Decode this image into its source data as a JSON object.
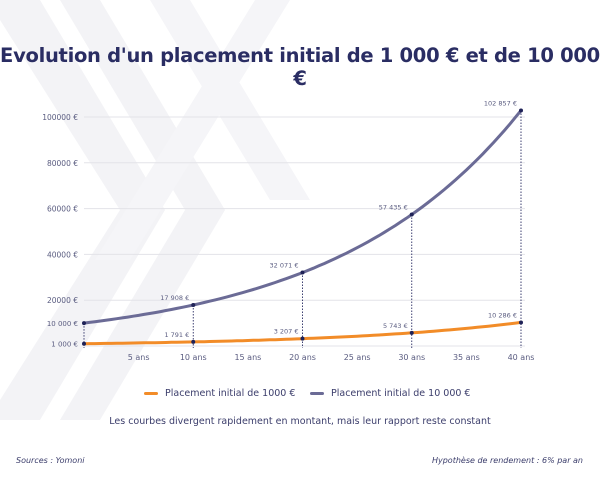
{
  "title": "Evolution d'un placement initial de 1 000 € et de 10 000 €",
  "chart_data": {
    "type": "line",
    "x": [
      0,
      10,
      20,
      30,
      40
    ],
    "xticks": [
      5,
      10,
      15,
      20,
      25,
      30,
      35,
      40
    ],
    "xtick_labels": [
      "5 ans",
      "10 ans",
      "15 ans",
      "20 ans",
      "25 ans",
      "30 ans",
      "35 ans",
      "40 ans"
    ],
    "xlim": [
      0,
      40
    ],
    "ylim": [
      0,
      100000
    ],
    "yticks": [
      1000,
      10000,
      20000,
      40000,
      60000,
      80000,
      100000
    ],
    "ytick_labels": [
      "1 000 €",
      "10 000 €",
      "20000 €",
      "40000 €",
      "60000 €",
      "80000 €",
      "100000 €"
    ],
    "grid": true,
    "legend_placement": "bottom",
    "series": [
      {
        "name": "Placement initial de 1000 €",
        "color": "#f28c28",
        "values": [
          1000,
          1791,
          3207,
          5743,
          10286
        ],
        "labels": [
          "",
          "1 791 €",
          "3 207 €",
          "5 743 €",
          "10 286 €"
        ]
      },
      {
        "name": "Placement initial de 10 000 €",
        "color": "#6b6b96",
        "values": [
          10000,
          17908,
          32071,
          57435,
          102857
        ],
        "labels": [
          "",
          "17 908 €",
          "32 071 €",
          "57 435 €",
          "102 857 €"
        ]
      }
    ],
    "marker_color": "#1f2257"
  },
  "caption": "Les courbes divergent rapidement en montant, mais leur rapport reste constant",
  "footer": {
    "source": "Sources : Yomoni",
    "hypothesis": "Hypothèse de rendement : 6% par an"
  }
}
